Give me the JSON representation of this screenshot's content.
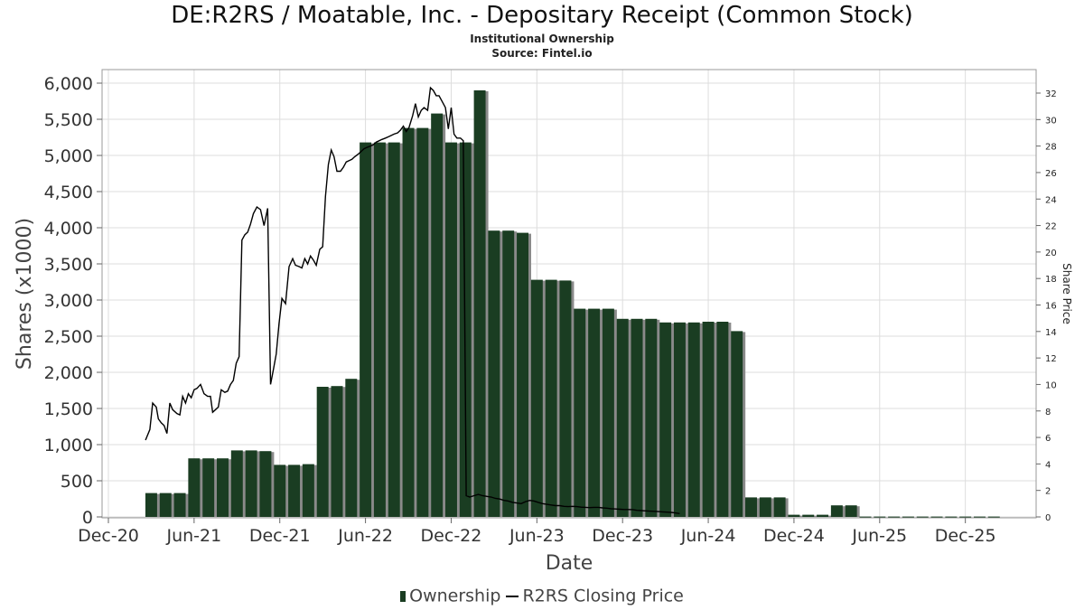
{
  "header": {
    "title": "DE:R2RS / Moatable, Inc. - Depositary Receipt (Common Stock)",
    "subtitle": "Institutional Ownership",
    "source": "Source: Fintel.io"
  },
  "legend": {
    "ownership_label": "Ownership",
    "price_label": "R2RS Closing Price"
  },
  "colors": {
    "bar": "#1a3d22",
    "bar_shadow": "#8a8a8a",
    "price_line": "#000000",
    "grid": "#dddddd"
  },
  "chart_data": {
    "type": "bar",
    "title": "DE:R2RS / Moatable, Inc. - Depositary Receipt (Common Stock)",
    "xlabel": "Date",
    "ylabel": "Shares (x1000)",
    "y2label": "Share Price",
    "ylim": [
      0,
      6200
    ],
    "y2lim": [
      0,
      33.8
    ],
    "x_range": [
      0,
      63.5
    ],
    "yticks": [
      0,
      500,
      1000,
      1500,
      2000,
      2500,
      3000,
      3500,
      4000,
      4500,
      5000,
      5500,
      6000
    ],
    "y2ticks": [
      0,
      2,
      4,
      6,
      8,
      10,
      12,
      14,
      16,
      18,
      20,
      22,
      24,
      26,
      28,
      30,
      32
    ],
    "xticks": [
      {
        "label": "Dec-20",
        "pos": 0
      },
      {
        "label": "Jun-21",
        "pos": 6
      },
      {
        "label": "Dec-21",
        "pos": 12
      },
      {
        "label": "Jun-22",
        "pos": 18
      },
      {
        "label": "Dec-22",
        "pos": 24
      },
      {
        "label": "Jun-23",
        "pos": 30
      },
      {
        "label": "Dec-23",
        "pos": 36
      },
      {
        "label": "Jun-24",
        "pos": 42
      },
      {
        "label": "Dec-24",
        "pos": 48
      },
      {
        "label": "Jun-25",
        "pos": 54
      },
      {
        "label": "Dec-25",
        "pos": 60
      }
    ],
    "grid": true,
    "series": [
      {
        "name": "Ownership",
        "type": "bar",
        "points": [
          [
            3.0,
            330
          ],
          [
            4.0,
            330
          ],
          [
            5.0,
            330
          ],
          [
            6.0,
            810
          ],
          [
            7.0,
            810
          ],
          [
            8.0,
            810
          ],
          [
            9.0,
            920
          ],
          [
            10.0,
            920
          ],
          [
            11.0,
            910
          ],
          [
            12.0,
            720
          ],
          [
            13.0,
            720
          ],
          [
            14.0,
            730
          ],
          [
            15.0,
            1800
          ],
          [
            16.0,
            1810
          ],
          [
            17.0,
            1910
          ],
          [
            18.0,
            5180
          ],
          [
            19.0,
            5180
          ],
          [
            20.0,
            5180
          ],
          [
            21.0,
            5380
          ],
          [
            22.0,
            5380
          ],
          [
            23.0,
            5580
          ],
          [
            24.0,
            5180
          ],
          [
            25.0,
            5180
          ],
          [
            26.0,
            5900
          ],
          [
            27.0,
            3960
          ],
          [
            28.0,
            3960
          ],
          [
            29.0,
            3930
          ],
          [
            30.0,
            3280
          ],
          [
            31.0,
            3280
          ],
          [
            32.0,
            3270
          ],
          [
            33.0,
            2880
          ],
          [
            34.0,
            2880
          ],
          [
            35.0,
            2880
          ],
          [
            36.0,
            2740
          ],
          [
            37.0,
            2740
          ],
          [
            38.0,
            2740
          ],
          [
            39.0,
            2690
          ],
          [
            40.0,
            2690
          ],
          [
            41.0,
            2690
          ],
          [
            42.0,
            2700
          ],
          [
            43.0,
            2700
          ],
          [
            44.0,
            2570
          ],
          [
            45.0,
            270
          ],
          [
            46.0,
            270
          ],
          [
            47.0,
            270
          ],
          [
            48.0,
            30
          ],
          [
            49.0,
            30
          ],
          [
            50.0,
            30
          ],
          [
            51.0,
            160
          ],
          [
            52.0,
            160
          ],
          [
            53.0,
            5
          ],
          [
            54.0,
            5
          ],
          [
            55.0,
            5
          ],
          [
            56.0,
            5
          ],
          [
            57.0,
            5
          ],
          [
            58.0,
            5
          ],
          [
            59.0,
            5
          ],
          [
            60.0,
            5
          ],
          [
            61.0,
            5
          ],
          [
            62.0,
            5
          ]
        ]
      },
      {
        "name": "R2RS Closing Price",
        "type": "line",
        "axis": "right",
        "points": [
          [
            2.6,
            5.8
          ],
          [
            2.9,
            6.6
          ],
          [
            3.1,
            8.6
          ],
          [
            3.35,
            8.3
          ],
          [
            3.5,
            7.4
          ],
          [
            3.7,
            7.1
          ],
          [
            3.9,
            6.9
          ],
          [
            4.1,
            6.3
          ],
          [
            4.3,
            8.6
          ],
          [
            4.5,
            8.1
          ],
          [
            4.8,
            7.8
          ],
          [
            5.0,
            7.7
          ],
          [
            5.2,
            9.1
          ],
          [
            5.4,
            8.6
          ],
          [
            5.6,
            9.3
          ],
          [
            5.8,
            9.0
          ],
          [
            6.0,
            9.6
          ],
          [
            6.2,
            9.7
          ],
          [
            6.45,
            10.0
          ],
          [
            6.7,
            9.3
          ],
          [
            6.95,
            9.1
          ],
          [
            7.15,
            9.1
          ],
          [
            7.3,
            7.9
          ],
          [
            7.5,
            8.1
          ],
          [
            7.7,
            8.3
          ],
          [
            7.9,
            9.6
          ],
          [
            8.15,
            9.4
          ],
          [
            8.35,
            9.5
          ],
          [
            8.55,
            10.0
          ],
          [
            8.75,
            10.3
          ],
          [
            8.95,
            11.6
          ],
          [
            9.15,
            12.1
          ],
          [
            9.35,
            20.9
          ],
          [
            9.55,
            21.3
          ],
          [
            9.75,
            21.5
          ],
          [
            9.95,
            22.1
          ],
          [
            10.15,
            22.9
          ],
          [
            10.4,
            23.4
          ],
          [
            10.65,
            23.2
          ],
          [
            10.9,
            22.0
          ],
          [
            11.15,
            23.3
          ],
          [
            11.35,
            10.0
          ],
          [
            11.55,
            11.1
          ],
          [
            11.75,
            12.3
          ],
          [
            11.95,
            14.6
          ],
          [
            12.15,
            16.5
          ],
          [
            12.4,
            16.1
          ],
          [
            12.65,
            18.9
          ],
          [
            12.9,
            19.5
          ],
          [
            13.1,
            19.0
          ],
          [
            13.35,
            18.9
          ],
          [
            13.55,
            18.8
          ],
          [
            13.75,
            19.5
          ],
          [
            13.95,
            19.1
          ],
          [
            14.15,
            19.7
          ],
          [
            14.35,
            19.4
          ],
          [
            14.55,
            19.0
          ],
          [
            14.8,
            20.2
          ],
          [
            15.0,
            20.4
          ],
          [
            15.2,
            24.2
          ],
          [
            15.4,
            26.6
          ],
          [
            15.6,
            27.7
          ],
          [
            15.8,
            27.2
          ],
          [
            16.0,
            26.1
          ],
          [
            16.25,
            26.1
          ],
          [
            16.45,
            26.4
          ],
          [
            16.65,
            26.8
          ],
          [
            16.85,
            26.9
          ],
          [
            17.05,
            27.0
          ],
          [
            17.25,
            27.2
          ],
          [
            17.5,
            27.4
          ],
          [
            17.7,
            27.6
          ],
          [
            17.9,
            27.8
          ],
          [
            18.1,
            27.9
          ],
          [
            18.35,
            28.0
          ],
          [
            18.55,
            28.1
          ],
          [
            18.75,
            28.3
          ],
          [
            18.95,
            28.4
          ],
          [
            19.15,
            28.5
          ],
          [
            19.4,
            28.6
          ],
          [
            19.6,
            28.7
          ],
          [
            19.8,
            28.8
          ],
          [
            20.0,
            28.9
          ],
          [
            20.25,
            29.0
          ],
          [
            20.45,
            29.2
          ],
          [
            20.65,
            29.5
          ],
          [
            20.85,
            29.1
          ],
          [
            21.05,
            29.4
          ],
          [
            21.3,
            30.3
          ],
          [
            21.5,
            31.2
          ],
          [
            21.7,
            30.2
          ],
          [
            21.9,
            30.7
          ],
          [
            22.1,
            30.9
          ],
          [
            22.35,
            30.7
          ],
          [
            22.55,
            32.4
          ],
          [
            22.75,
            32.2
          ],
          [
            22.95,
            31.8
          ],
          [
            23.15,
            31.8
          ],
          [
            23.4,
            31.3
          ],
          [
            23.6,
            30.9
          ],
          [
            23.8,
            29.3
          ],
          [
            24.0,
            30.9
          ],
          [
            24.2,
            28.9
          ],
          [
            24.4,
            28.6
          ],
          [
            24.65,
            28.6
          ],
          [
            24.85,
            28.4
          ],
          [
            25.05,
            1.6
          ],
          [
            25.3,
            1.5
          ],
          [
            25.6,
            1.6
          ],
          [
            25.9,
            1.7
          ],
          [
            26.2,
            1.6
          ],
          [
            26.5,
            1.55
          ],
          [
            26.8,
            1.5
          ],
          [
            27.1,
            1.4
          ],
          [
            27.4,
            1.35
          ],
          [
            27.7,
            1.25
          ],
          [
            28.0,
            1.2
          ],
          [
            28.3,
            1.1
          ],
          [
            28.6,
            1.05
          ],
          [
            28.9,
            1.0
          ],
          [
            29.2,
            1.15
          ],
          [
            29.5,
            1.25
          ],
          [
            29.8,
            1.2
          ],
          [
            30.1,
            1.1
          ],
          [
            30.4,
            1.0
          ],
          [
            30.7,
            0.95
          ],
          [
            31.0,
            0.9
          ],
          [
            31.3,
            0.85
          ],
          [
            31.6,
            0.85
          ],
          [
            31.9,
            0.8
          ],
          [
            32.2,
            0.78
          ],
          [
            32.5,
            0.8
          ],
          [
            32.8,
            0.78
          ],
          [
            33.1,
            0.74
          ],
          [
            33.4,
            0.72
          ],
          [
            33.7,
            0.7
          ],
          [
            34.0,
            0.72
          ],
          [
            34.3,
            0.72
          ],
          [
            34.6,
            0.68
          ],
          [
            34.9,
            0.66
          ],
          [
            35.2,
            0.62
          ],
          [
            35.5,
            0.6
          ],
          [
            35.8,
            0.58
          ],
          [
            36.1,
            0.56
          ],
          [
            36.4,
            0.56
          ],
          [
            36.7,
            0.55
          ],
          [
            37.0,
            0.5
          ],
          [
            37.3,
            0.48
          ],
          [
            37.6,
            0.46
          ],
          [
            37.9,
            0.44
          ],
          [
            38.2,
            0.42
          ],
          [
            38.5,
            0.4
          ],
          [
            38.8,
            0.38
          ],
          [
            39.1,
            0.36
          ],
          [
            39.4,
            0.34
          ],
          [
            39.7,
            0.3
          ],
          [
            40.0,
            0.25
          ]
        ]
      }
    ]
  }
}
